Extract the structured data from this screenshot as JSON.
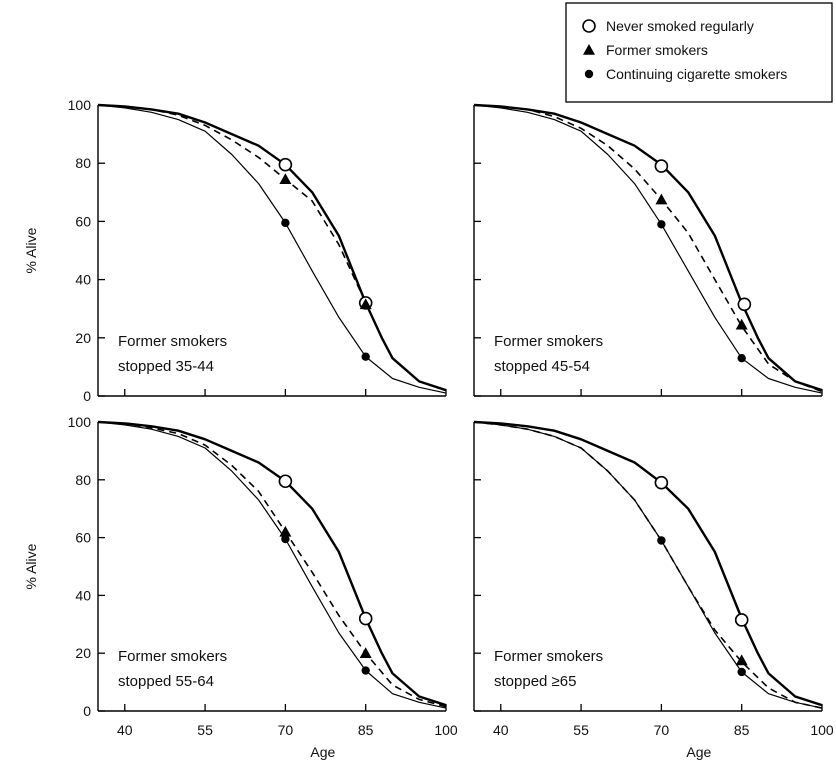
{
  "chart_data": {
    "type": "line",
    "xlabel": "Age",
    "ylabel": "% Alive",
    "xlim": [
      35,
      100
    ],
    "ylim": [
      0,
      100
    ],
    "x_ticks": [
      40,
      55,
      70,
      85,
      100
    ],
    "y_ticks": [
      0,
      20,
      40,
      60,
      80,
      100
    ],
    "legend": {
      "placement": "top-right",
      "entries": [
        {
          "label": "Never smoked regularly",
          "marker": "open-circle",
          "line": "thick-solid"
        },
        {
          "label": "Former smokers",
          "marker": "filled-triangle",
          "line": "dashed"
        },
        {
          "label": "Continuing cigarette smokers",
          "marker": "filled-circle",
          "line": "thin-solid"
        }
      ]
    },
    "panels": [
      {
        "label_line1": "Former smokers",
        "label_line2": "stopped 35-44",
        "series": [
          {
            "style": "never",
            "x": [
              35,
              40,
              45,
              50,
              55,
              60,
              65,
              70,
              75,
              80,
              85,
              88,
              90,
              95,
              100
            ],
            "y": [
              100,
              99.5,
              98.5,
              97,
              94,
              90,
              86,
              79.5,
              70,
              55,
              32,
              20,
              13,
              5,
              2
            ]
          },
          {
            "style": "former",
            "x": [
              35,
              40,
              45,
              50,
              55,
              60,
              65,
              70,
              75,
              80,
              85,
              88,
              90,
              95,
              100
            ],
            "y": [
              100,
              99.5,
              98.5,
              96.5,
              93,
              88,
              82,
              74.5,
              67,
              52,
              32,
              20,
              13,
              5,
              2
            ]
          },
          {
            "style": "continuing",
            "x": [
              35,
              40,
              45,
              50,
              55,
              60,
              65,
              70,
              75,
              80,
              85,
              90,
              95,
              100
            ],
            "y": [
              100,
              99,
              97.5,
              95,
              91,
              83,
              73,
              59.5,
              43,
              27,
              13.5,
              6,
              3,
              1
            ]
          }
        ],
        "markers": [
          {
            "style": "never",
            "x": 70,
            "y": 79.5
          },
          {
            "style": "never",
            "x": 85,
            "y": 32
          },
          {
            "style": "former",
            "x": 70,
            "y": 74.5
          },
          {
            "style": "former",
            "x": 85,
            "y": 31.5
          },
          {
            "style": "continuing",
            "x": 70,
            "y": 59.5
          },
          {
            "style": "continuing",
            "x": 85,
            "y": 13.5
          }
        ]
      },
      {
        "label_line1": "Former smokers",
        "label_line2": "stopped 45-54",
        "series": [
          {
            "style": "never",
            "x": [
              35,
              40,
              45,
              50,
              55,
              60,
              65,
              70,
              75,
              80,
              85,
              88,
              90,
              95,
              100
            ],
            "y": [
              100,
              99.5,
              98.5,
              97,
              94,
              90,
              86,
              79.5,
              70,
              55,
              32,
              20,
              13,
              5,
              2
            ]
          },
          {
            "style": "former",
            "x": [
              35,
              40,
              45,
              50,
              55,
              60,
              65,
              70,
              75,
              80,
              85,
              90,
              95,
              100
            ],
            "y": [
              100,
              99.5,
              98.5,
              96,
              92,
              86,
              78,
              67.5,
              56,
              40,
              24,
              11,
              5,
              1.5
            ]
          },
          {
            "style": "continuing",
            "x": [
              35,
              40,
              45,
              50,
              55,
              60,
              65,
              70,
              75,
              80,
              85,
              90,
              95,
              100
            ],
            "y": [
              100,
              99,
              97.5,
              95,
              91,
              83,
              73,
              59,
              43,
              27,
              13,
              6,
              3,
              1
            ]
          }
        ],
        "markers": [
          {
            "style": "never",
            "x": 70,
            "y": 79
          },
          {
            "style": "never",
            "x": 85.5,
            "y": 31.5
          },
          {
            "style": "former",
            "x": 70,
            "y": 67.5
          },
          {
            "style": "former",
            "x": 85,
            "y": 24.5
          },
          {
            "style": "continuing",
            "x": 70,
            "y": 59
          },
          {
            "style": "continuing",
            "x": 85,
            "y": 13
          }
        ]
      },
      {
        "label_line1": "Former smokers",
        "label_line2": "stopped 55-64",
        "series": [
          {
            "style": "never",
            "x": [
              35,
              40,
              45,
              50,
              55,
              60,
              65,
              70,
              75,
              80,
              85,
              88,
              90,
              95,
              100
            ],
            "y": [
              100,
              99.5,
              98.5,
              97,
              94,
              90,
              86,
              79.5,
              70,
              55,
              32,
              20,
              13,
              5,
              2
            ]
          },
          {
            "style": "former",
            "x": [
              35,
              40,
              45,
              50,
              55,
              60,
              65,
              70,
              75,
              80,
              85,
              90,
              95,
              100
            ],
            "y": [
              100,
              99.5,
              98,
              96,
              92,
              85,
              76,
              62,
              48,
              33,
              20,
              9,
              4,
              1.5
            ]
          },
          {
            "style": "continuing",
            "x": [
              35,
              40,
              45,
              50,
              55,
              60,
              65,
              70,
              75,
              80,
              85,
              90,
              95,
              100
            ],
            "y": [
              100,
              99,
              97.5,
              95,
              91,
              83,
              73,
              59.5,
              43,
              27,
              14,
              6,
              3,
              1
            ]
          }
        ],
        "markers": [
          {
            "style": "never",
            "x": 70,
            "y": 79.5
          },
          {
            "style": "never",
            "x": 85,
            "y": 32
          },
          {
            "style": "former",
            "x": 70,
            "y": 62
          },
          {
            "style": "former",
            "x": 85,
            "y": 20
          },
          {
            "style": "continuing",
            "x": 70,
            "y": 59.5
          },
          {
            "style": "continuing",
            "x": 85,
            "y": 14
          }
        ]
      },
      {
        "label_line1": "Former smokers",
        "label_line2": "stopped ≥65",
        "series": [
          {
            "style": "never",
            "x": [
              35,
              40,
              45,
              50,
              55,
              60,
              65,
              70,
              75,
              80,
              85,
              88,
              90,
              95,
              100
            ],
            "y": [
              100,
              99.5,
              98.5,
              97,
              94,
              90,
              86,
              79,
              70,
              55,
              32,
              20,
              13,
              5,
              2
            ]
          },
          {
            "style": "former",
            "x": [
              35,
              40,
              45,
              50,
              55,
              60,
              65,
              70,
              75,
              80,
              85,
              90,
              95,
              100
            ],
            "y": [
              100,
              99,
              97.5,
              95,
              91,
              83,
              73,
              59,
              43,
              28,
              17,
              8,
              3,
              1
            ]
          },
          {
            "style": "continuing",
            "x": [
              35,
              40,
              45,
              50,
              55,
              60,
              65,
              70,
              75,
              80,
              85,
              90,
              95,
              100
            ],
            "y": [
              100,
              99,
              97.5,
              95,
              91,
              83,
              73,
              59,
              43,
              27,
              13.5,
              6,
              3,
              1
            ]
          }
        ],
        "markers": [
          {
            "style": "never",
            "x": 70,
            "y": 79
          },
          {
            "style": "never",
            "x": 85,
            "y": 31.5
          },
          {
            "style": "former",
            "x": 85,
            "y": 17.5
          },
          {
            "style": "continuing",
            "x": 70,
            "y": 59
          },
          {
            "style": "continuing",
            "x": 85,
            "y": 13.5
          }
        ]
      }
    ]
  }
}
